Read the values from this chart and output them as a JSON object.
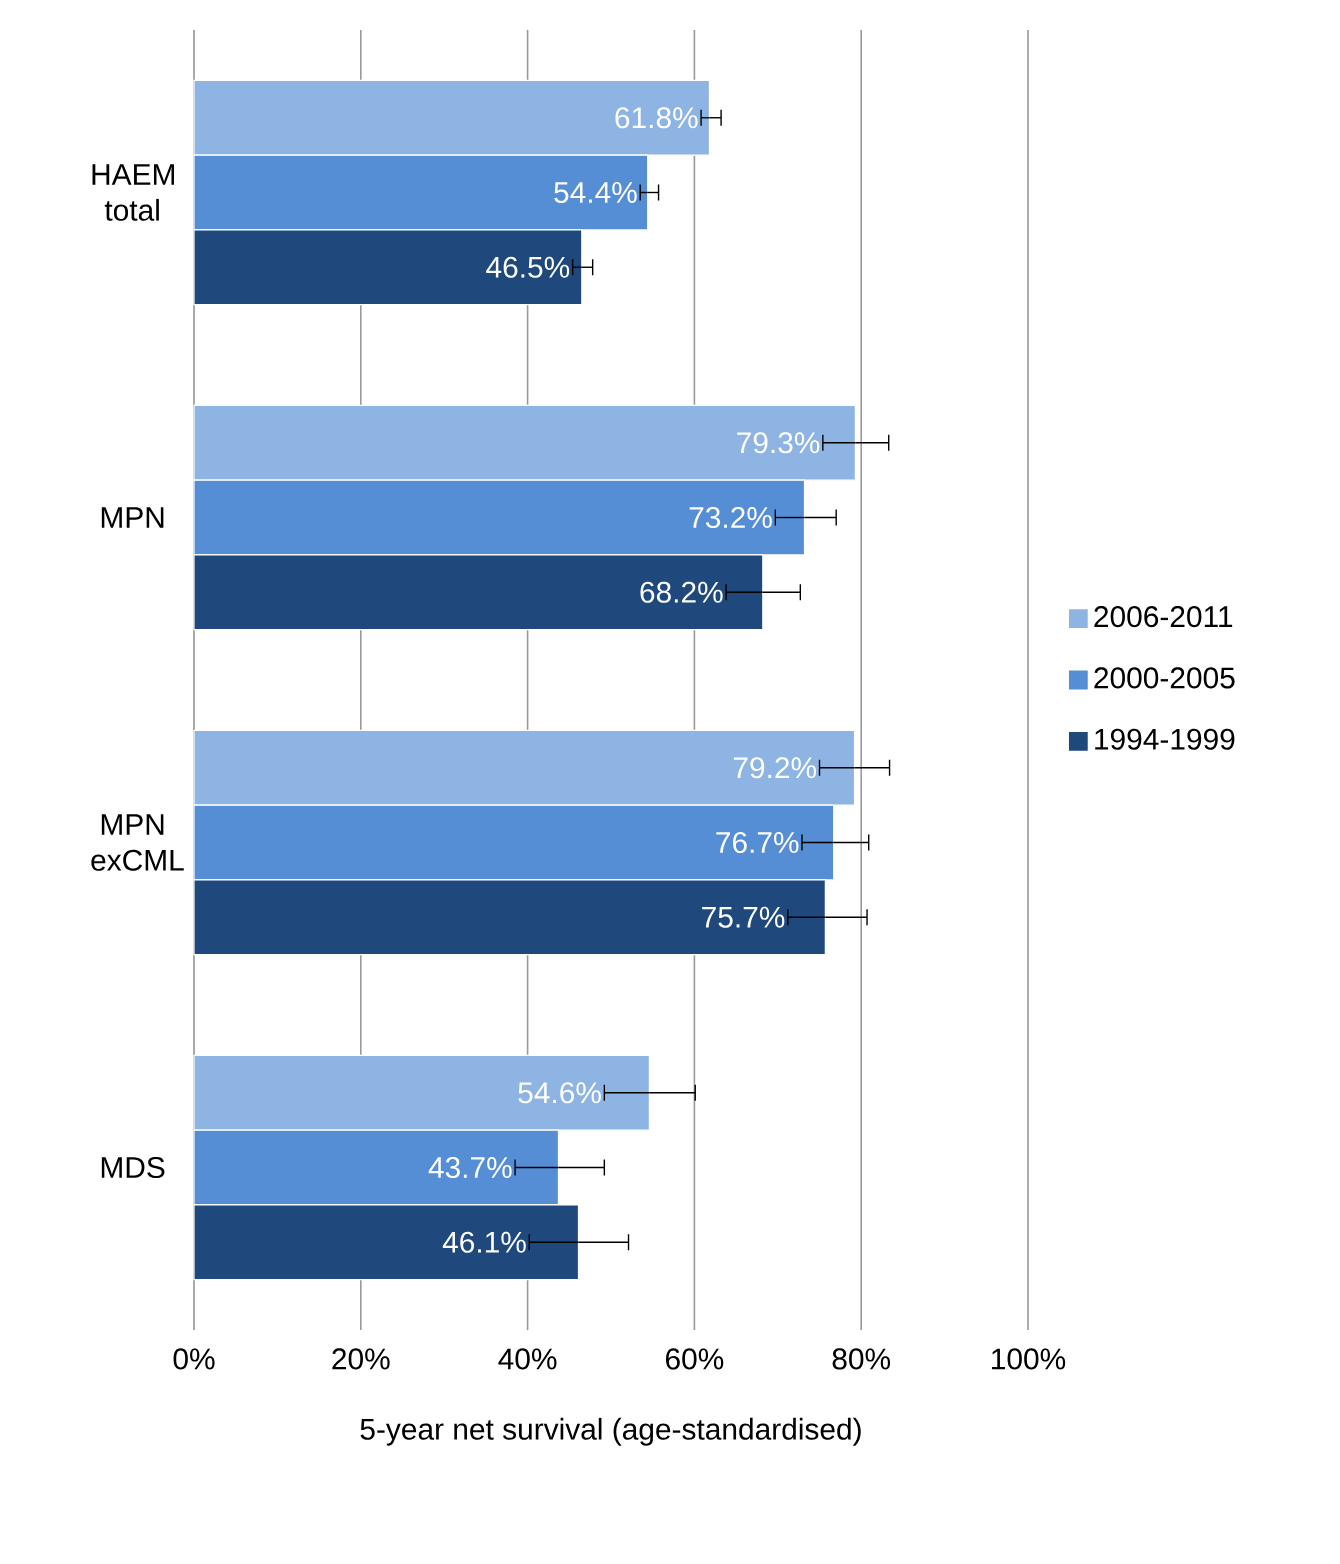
{
  "chart_data": {
    "type": "bar",
    "orientation": "horizontal",
    "xlabel": "5-year net survival (age-standardised)",
    "categories": [
      "HAEM total",
      "MPN",
      "MPN exCML",
      "MDS"
    ],
    "series": [
      {
        "name": "2006-2011",
        "color": "#8eb4e3",
        "values": [
          61.8,
          79.3,
          79.2,
          54.6
        ],
        "value_labels": [
          "61.8%",
          "79.3%",
          "79.2%",
          "54.6%"
        ],
        "errors": [
          [
            60.8,
            63.2
          ],
          [
            75.4,
            83.3
          ],
          [
            75.0,
            83.4
          ],
          [
            49.2,
            60.1
          ]
        ]
      },
      {
        "name": "2000-2005",
        "color": "#558ed5",
        "values": [
          54.4,
          73.2,
          76.7,
          43.7
        ],
        "value_labels": [
          "54.4%",
          "73.2%",
          "76.7%",
          "43.7%"
        ],
        "errors": [
          [
            53.5,
            55.7
          ],
          [
            69.7,
            77.0
          ],
          [
            72.9,
            80.9
          ],
          [
            38.5,
            49.2
          ]
        ]
      },
      {
        "name": "1994-1999",
        "color": "#1f497d",
        "values": [
          46.5,
          68.2,
          75.7,
          46.1
        ],
        "value_labels": [
          "46.5%",
          "68.2%",
          "75.7%",
          "46.1%"
        ],
        "errors": [
          [
            45.4,
            47.8
          ],
          [
            63.8,
            72.7
          ],
          [
            71.2,
            80.7
          ],
          [
            40.2,
            52.1
          ]
        ]
      }
    ],
    "xlim": [
      0,
      100
    ],
    "xticks": [
      {
        "value": 0,
        "label": "0%"
      },
      {
        "value": 20,
        "label": "20%"
      },
      {
        "value": 40,
        "label": "40%"
      },
      {
        "value": 60,
        "label": "60%"
      },
      {
        "value": 80,
        "label": "80%"
      },
      {
        "value": 100,
        "label": "100%"
      }
    ],
    "grid": "x",
    "legend": "right"
  }
}
